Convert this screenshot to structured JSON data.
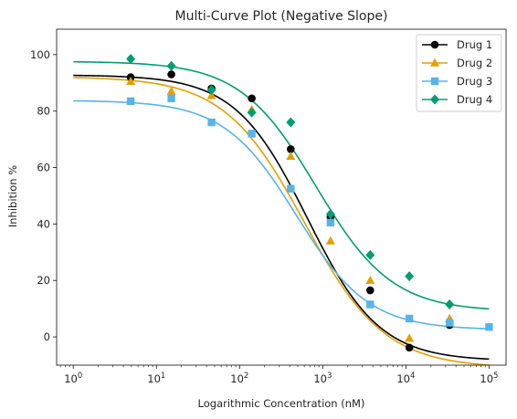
{
  "chart_data": {
    "type": "scatter",
    "title": "Multi-Curve Plot (Negative Slope)",
    "xlabel": "Logarithmic Concentration (nM)",
    "ylabel": "Inhibition %",
    "xscale": "log",
    "xlim": [
      0.63,
      160000
    ],
    "ylim": [
      -10,
      109
    ],
    "xticks": [
      {
        "value": 1,
        "base": "10",
        "exp": "0"
      },
      {
        "value": 10,
        "base": "10",
        "exp": "1"
      },
      {
        "value": 100,
        "base": "10",
        "exp": "2"
      },
      {
        "value": 1000,
        "base": "10",
        "exp": "3"
      },
      {
        "value": 10000,
        "base": "10",
        "exp": "4"
      },
      {
        "value": 100000,
        "base": "10",
        "exp": "5"
      }
    ],
    "yticks": [
      {
        "value": 0,
        "label": "0"
      },
      {
        "value": 20,
        "label": "20"
      },
      {
        "value": 40,
        "label": "40"
      },
      {
        "value": 60,
        "label": "60"
      },
      {
        "value": 80,
        "label": "80"
      },
      {
        "value": 100,
        "label": "100"
      }
    ],
    "grid": false,
    "legend_position": "top-right",
    "series": [
      {
        "name": "Drug 1",
        "color": "#000000",
        "marker": "circle",
        "x": [
          4.9,
          15.1,
          46,
          140,
          412,
          1240,
          3720,
          11000,
          33500
        ],
        "y": [
          92.0,
          93.0,
          88.0,
          84.5,
          66.5,
          42.5,
          16.5,
          -3.8,
          4.2
        ],
        "curve": {
          "top": 92.8,
          "bottom": -8.5,
          "ec50": 650,
          "hill": 1.0
        }
      },
      {
        "name": "Drug 2",
        "color": "#E69F00",
        "marker": "triangle",
        "x": [
          4.9,
          15.1,
          46,
          140,
          412,
          1240,
          3720,
          11000,
          33500
        ],
        "y": [
          90.5,
          87.0,
          85.5,
          80.5,
          64.0,
          34.0,
          20.0,
          -0.5,
          6.5
        ],
        "curve": {
          "top": 92.2,
          "bottom": -11.0,
          "ec50": 600,
          "hill": 0.9
        }
      },
      {
        "name": "Drug 3",
        "color": "#56B4E9",
        "marker": "square",
        "x": [
          4.9,
          15.1,
          46,
          140,
          412,
          1240,
          3720,
          11000,
          33500,
          100000
        ],
        "y": [
          83.5,
          84.5,
          76.0,
          72.0,
          52.5,
          40.5,
          11.5,
          6.5,
          5.0,
          3.5
        ],
        "curve": {
          "top": 83.8,
          "bottom": 2.5,
          "ec50": 480,
          "hill": 1.0
        }
      },
      {
        "name": "Drug 4",
        "color": "#009E73",
        "marker": "diamond",
        "x": [
          4.9,
          15.1,
          46,
          140,
          412,
          1240,
          3720,
          11000,
          33500
        ],
        "y": [
          98.5,
          96.0,
          87.5,
          79.5,
          76.0,
          43.5,
          29.0,
          21.5,
          11.5
        ],
        "curve": {
          "top": 97.6,
          "bottom": 9.0,
          "ec50": 830,
          "hill": 0.95
        }
      }
    ]
  }
}
